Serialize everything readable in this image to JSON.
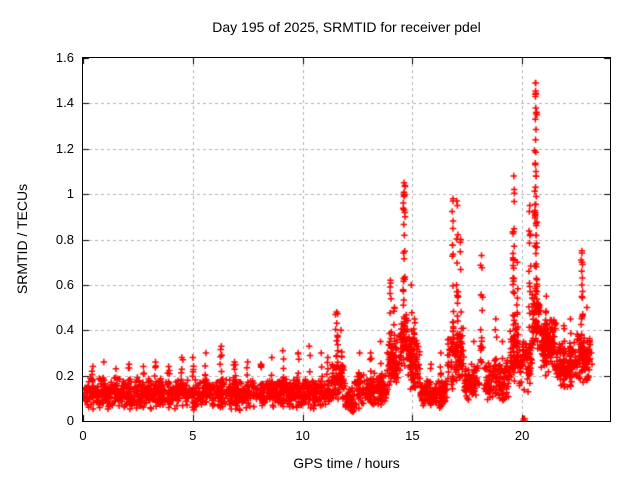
{
  "chart_data": {
    "type": "scatter",
    "title": "Day 195 of 2025, SRMTID for receiver pdel",
    "xlabel": "GPS time / hours",
    "ylabel": "SRMTID / TECUs",
    "xlim": [
      0,
      24
    ],
    "ylim": [
      0,
      1.6
    ],
    "xticks": {
      "values": [
        0,
        5,
        10,
        15,
        20
      ],
      "labels": [
        "0",
        "5",
        "10",
        "15",
        "20"
      ]
    },
    "yticks": {
      "values": [
        0,
        0.2,
        0.4,
        0.6,
        0.8,
        1.0,
        1.2,
        1.4,
        1.6
      ],
      "labels": [
        "0",
        "0.2",
        "0.4",
        "0.6",
        "0.8",
        "1",
        "1.2",
        "1.4",
        "1.6"
      ]
    },
    "grid": true,
    "legend": null,
    "colors": {
      "marker": "#ff0000",
      "grid": "#b0b0b0",
      "axis": "#000000",
      "text": "#000000",
      "background": "#ffffff"
    },
    "marker": {
      "shape": "plus",
      "size": 7
    },
    "series": [
      {
        "name": "SRMTID",
        "baseline_bands": [
          [
            0.0,
            11.3,
            0.045,
            0.195,
            1050
          ],
          [
            11.3,
            11.95,
            0.07,
            0.27,
            60
          ],
          [
            11.95,
            12.35,
            0.03,
            0.15,
            55
          ],
          [
            12.35,
            13.85,
            0.05,
            0.22,
            150
          ],
          [
            13.85,
            14.45,
            0.1,
            0.38,
            65
          ],
          [
            14.45,
            14.8,
            0.22,
            0.55,
            45
          ],
          [
            14.8,
            15.35,
            0.13,
            0.38,
            60
          ],
          [
            15.35,
            16.6,
            0.055,
            0.19,
            130
          ],
          [
            16.6,
            17.35,
            0.14,
            0.42,
            75
          ],
          [
            17.35,
            18.05,
            0.08,
            0.26,
            65
          ],
          [
            18.25,
            19.45,
            0.08,
            0.28,
            115
          ],
          [
            19.45,
            19.85,
            0.15,
            0.45,
            55
          ],
          [
            19.85,
            20.45,
            0.12,
            0.38,
            60
          ],
          [
            20.45,
            20.85,
            0.28,
            0.58,
            55
          ],
          [
            20.85,
            21.55,
            0.2,
            0.46,
            110
          ],
          [
            21.55,
            22.35,
            0.14,
            0.36,
            105
          ],
          [
            22.35,
            23.1,
            0.15,
            0.4,
            90
          ]
        ],
        "spikes": [
          [
            0.45,
            0.12,
            0.12,
            0.24,
            10
          ],
          [
            0.95,
            0.12,
            0.12,
            0.26,
            10
          ],
          [
            1.5,
            0.1,
            0.12,
            0.23,
            8
          ],
          [
            2.1,
            0.1,
            0.12,
            0.25,
            8
          ],
          [
            2.75,
            0.1,
            0.12,
            0.24,
            8
          ],
          [
            3.3,
            0.1,
            0.12,
            0.26,
            10
          ],
          [
            3.9,
            0.1,
            0.12,
            0.24,
            8
          ],
          [
            4.5,
            0.1,
            0.12,
            0.28,
            10
          ],
          [
            5.0,
            0.1,
            0.12,
            0.28,
            8
          ],
          [
            5.6,
            0.1,
            0.12,
            0.3,
            10
          ],
          [
            6.3,
            0.12,
            0.12,
            0.33,
            12
          ],
          [
            6.9,
            0.1,
            0.12,
            0.26,
            8
          ],
          [
            7.5,
            0.1,
            0.12,
            0.26,
            8
          ],
          [
            8.1,
            0.1,
            0.12,
            0.25,
            8
          ],
          [
            8.6,
            0.1,
            0.12,
            0.28,
            8
          ],
          [
            9.1,
            0.12,
            0.12,
            0.31,
            10
          ],
          [
            9.8,
            0.1,
            0.12,
            0.3,
            10
          ],
          [
            10.3,
            0.12,
            0.12,
            0.33,
            10
          ],
          [
            10.85,
            0.1,
            0.12,
            0.3,
            10
          ],
          [
            11.15,
            0.1,
            0.12,
            0.28,
            8
          ],
          [
            11.55,
            0.12,
            0.18,
            0.48,
            20
          ],
          [
            11.75,
            0.1,
            0.15,
            0.4,
            12
          ],
          [
            12.6,
            0.08,
            0.12,
            0.3,
            8
          ],
          [
            13.1,
            0.08,
            0.12,
            0.3,
            8
          ],
          [
            13.55,
            0.08,
            0.12,
            0.35,
            8
          ],
          [
            14.0,
            0.12,
            0.25,
            0.62,
            18
          ],
          [
            14.18,
            0.08,
            0.2,
            0.5,
            10
          ],
          [
            14.62,
            0.1,
            0.4,
            1.05,
            32
          ],
          [
            14.95,
            0.08,
            0.2,
            0.6,
            14
          ],
          [
            15.1,
            0.08,
            0.15,
            0.45,
            12
          ],
          [
            15.85,
            0.06,
            0.1,
            0.25,
            6
          ],
          [
            16.3,
            0.06,
            0.1,
            0.3,
            8
          ],
          [
            16.85,
            0.08,
            0.3,
            0.98,
            26
          ],
          [
            17.05,
            0.08,
            0.3,
            0.95,
            22
          ],
          [
            17.2,
            0.06,
            0.25,
            0.8,
            12
          ],
          [
            17.8,
            0.06,
            0.12,
            0.35,
            8
          ],
          [
            18.15,
            0.1,
            0.25,
            0.73,
            18
          ],
          [
            18.8,
            0.08,
            0.12,
            0.45,
            10
          ],
          [
            19.1,
            0.06,
            0.1,
            0.35,
            8
          ],
          [
            19.62,
            0.1,
            0.3,
            1.08,
            28
          ],
          [
            19.78,
            0.06,
            0.25,
            0.7,
            10
          ],
          [
            20.35,
            0.1,
            0.3,
            0.95,
            16
          ],
          [
            20.62,
            0.12,
            0.5,
            1.49,
            42
          ],
          [
            21.1,
            0.08,
            0.2,
            0.55,
            12
          ],
          [
            21.9,
            0.06,
            0.15,
            0.42,
            8
          ],
          [
            22.2,
            0.06,
            0.15,
            0.45,
            8
          ],
          [
            22.72,
            0.08,
            0.3,
            0.75,
            22
          ],
          [
            22.95,
            0.06,
            0.18,
            0.5,
            10
          ]
        ],
        "points": [
          [
            20.05,
            0
          ],
          [
            20.08,
            0
          ],
          [
            20.1,
            0
          ],
          [
            20.13,
            0
          ],
          [
            20.07,
            0.01
          ],
          [
            20.11,
            0.01
          ],
          [
            14.62,
            1.05
          ],
          [
            14.6,
            1.0
          ],
          [
            14.64,
            1.0
          ],
          [
            14.62,
            0.99
          ],
          [
            14.63,
            0.93
          ],
          [
            16.85,
            0.97
          ],
          [
            17.02,
            0.97
          ],
          [
            19.62,
            1.08
          ],
          [
            19.64,
            1.02
          ],
          [
            20.6,
            1.49
          ],
          [
            20.61,
            1.455
          ],
          [
            20.625,
            1.445
          ],
          [
            20.615,
            1.44
          ],
          [
            20.605,
            1.43
          ],
          [
            20.62,
            1.38
          ],
          [
            20.6,
            1.33
          ],
          [
            20.63,
            1.285
          ],
          [
            20.61,
            1.24
          ],
          [
            20.62,
            1.185
          ],
          [
            20.6,
            1.13
          ],
          [
            20.63,
            1.08
          ],
          [
            20.61,
            1.03
          ],
          [
            20.64,
            0.99
          ],
          [
            20.62,
            0.955
          ],
          [
            20.6,
            0.91
          ],
          [
            20.63,
            0.87
          ],
          [
            22.72,
            0.74
          ],
          [
            22.73,
            0.7
          ],
          [
            22.71,
            0.66
          ],
          [
            22.74,
            0.63
          ],
          [
            22.72,
            0.6
          ],
          [
            23.15,
            0.3
          ],
          [
            23.18,
            0.25
          ]
        ]
      }
    ]
  }
}
